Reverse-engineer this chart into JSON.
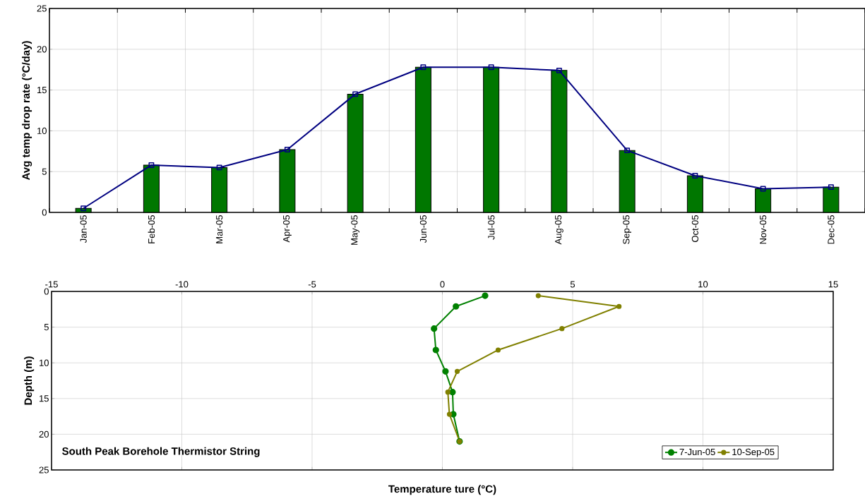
{
  "chart_data": [
    {
      "type": "bar",
      "ylabel": "Avg temp drop rate (°C/day)",
      "categories": [
        "Jan-05",
        "Feb-05",
        "Mar-05",
        "Apr-05",
        "May-05",
        "Jun-05",
        "Jul-05",
        "Aug-05",
        "Sep-05",
        "Oct-05",
        "Nov-05",
        "Dec-05"
      ],
      "series": [
        {
          "type": "bar",
          "color": "#007700",
          "values": [
            0.5,
            5.8,
            5.5,
            7.7,
            14.5,
            17.8,
            17.8,
            17.4,
            7.6,
            4.5,
            2.9,
            3.1
          ]
        },
        {
          "type": "line",
          "color": "#000080",
          "values": [
            0.5,
            5.8,
            5.5,
            7.7,
            14.5,
            17.8,
            17.8,
            17.4,
            7.6,
            4.5,
            2.9,
            3.1
          ]
        }
      ],
      "ylim": [
        0,
        25
      ],
      "yticks": [
        0,
        5,
        10,
        15,
        20,
        25
      ],
      "grid": true,
      "marker": "square"
    },
    {
      "type": "line",
      "xlabel": "Temperature ture (°C)",
      "ylabel": "Depth (m)",
      "annotations": [
        "South Peak Borehole Thermistor String"
      ],
      "series": [
        {
          "name": "7-Jun-05",
          "color": "#008000",
          "x": [
            1.64,
            0.52,
            -0.32,
            -0.25,
            0.12,
            0.39,
            0.42,
            0.66
          ],
          "values": [
            0.6,
            2.1,
            5.2,
            8.2,
            11.2,
            14.1,
            17.2,
            21.0
          ]
        },
        {
          "name": "10-Sep-05",
          "color": "#808000",
          "x": [
            3.68,
            6.78,
            4.59,
            2.14,
            0.57,
            0.21,
            0.27,
            0.66
          ],
          "values": [
            0.6,
            2.1,
            5.2,
            8.2,
            11.2,
            14.1,
            17.2,
            21.0
          ]
        }
      ],
      "xlim": [
        -15,
        15
      ],
      "xticks": [
        -15,
        -10,
        -5,
        0,
        5,
        10,
        15
      ],
      "ylim": [
        25,
        0
      ],
      "yticks": [
        0,
        5,
        10,
        15,
        20,
        25
      ],
      "grid": true,
      "legend": "bottom right",
      "marker": "circle"
    }
  ]
}
